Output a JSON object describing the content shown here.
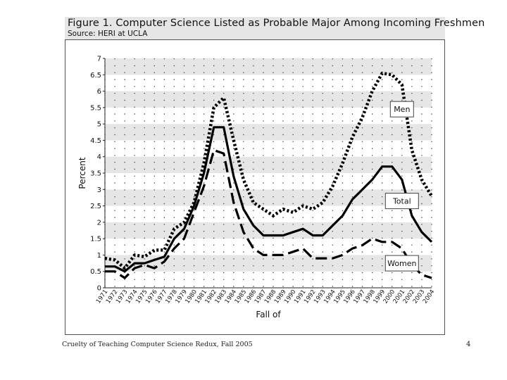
{
  "figure": {
    "title": "Figure 1. Computer Science Listed as Probable Major Among Incoming Freshmen",
    "source": "Source: HERI at UCLA"
  },
  "footer": {
    "left_text": "Cruelty of Teaching Computer Science Redux, Fall 2005",
    "page_number": "4"
  },
  "colors": {
    "band": "#e6e6e6",
    "line": "#000000",
    "label_border": "#444444"
  },
  "chart_data": {
    "type": "line",
    "title": "Figure 1. Computer Science Listed as Probable Major Among Incoming Freshmen",
    "xlabel": "Fall of",
    "ylabel": "Percent",
    "ylim": [
      0,
      7
    ],
    "yticks": [
      0,
      0.5,
      1,
      1.5,
      2,
      2.5,
      3,
      3.5,
      4,
      4.5,
      5,
      5.5,
      6,
      6.5,
      7
    ],
    "ytick_labels": [
      "0",
      "0.5",
      "1",
      "1.5",
      "2",
      "2.5",
      "3",
      "3.5",
      "4",
      "4.5",
      "5",
      "5.5",
      "6",
      "6.5",
      "7"
    ],
    "x": [
      1971,
      1972,
      1973,
      1974,
      1975,
      1976,
      1977,
      1978,
      1979,
      1980,
      1981,
      1982,
      1983,
      1984,
      1985,
      1986,
      1987,
      1988,
      1989,
      1990,
      1991,
      1992,
      1993,
      1994,
      1995,
      1996,
      1997,
      1998,
      1999,
      2000,
      2001,
      2002,
      2003,
      2004
    ],
    "series": [
      {
        "name": "Men",
        "style": "dotted",
        "values": [
          0.9,
          0.85,
          0.6,
          1.0,
          0.95,
          1.15,
          1.15,
          1.8,
          2.0,
          2.6,
          3.8,
          5.5,
          5.8,
          4.5,
          3.3,
          2.6,
          2.4,
          2.2,
          2.4,
          2.3,
          2.5,
          2.4,
          2.6,
          3.1,
          3.8,
          4.6,
          5.2,
          6.0,
          6.55,
          6.5,
          6.2,
          4.2,
          3.3,
          2.8
        ]
      },
      {
        "name": "Total",
        "style": "solid",
        "values": [
          0.65,
          0.65,
          0.5,
          0.75,
          0.75,
          0.85,
          0.95,
          1.5,
          1.8,
          2.5,
          3.5,
          4.9,
          4.9,
          3.4,
          2.4,
          1.9,
          1.6,
          1.6,
          1.6,
          1.7,
          1.8,
          1.6,
          1.6,
          1.9,
          2.2,
          2.7,
          3.0,
          3.3,
          3.7,
          3.7,
          3.3,
          2.2,
          1.7,
          1.4
        ]
      },
      {
        "name": "Women",
        "style": "dashed",
        "values": [
          0.5,
          0.5,
          0.3,
          0.6,
          0.7,
          0.6,
          0.8,
          1.2,
          1.5,
          2.3,
          3.1,
          4.2,
          4.1,
          2.6,
          1.7,
          1.2,
          1.0,
          1.0,
          1.0,
          1.1,
          1.2,
          0.9,
          0.9,
          0.9,
          1.0,
          1.2,
          1.3,
          1.5,
          1.4,
          1.4,
          1.2,
          0.7,
          0.4,
          0.3
        ]
      }
    ],
    "legend": "inline labels on right side"
  }
}
